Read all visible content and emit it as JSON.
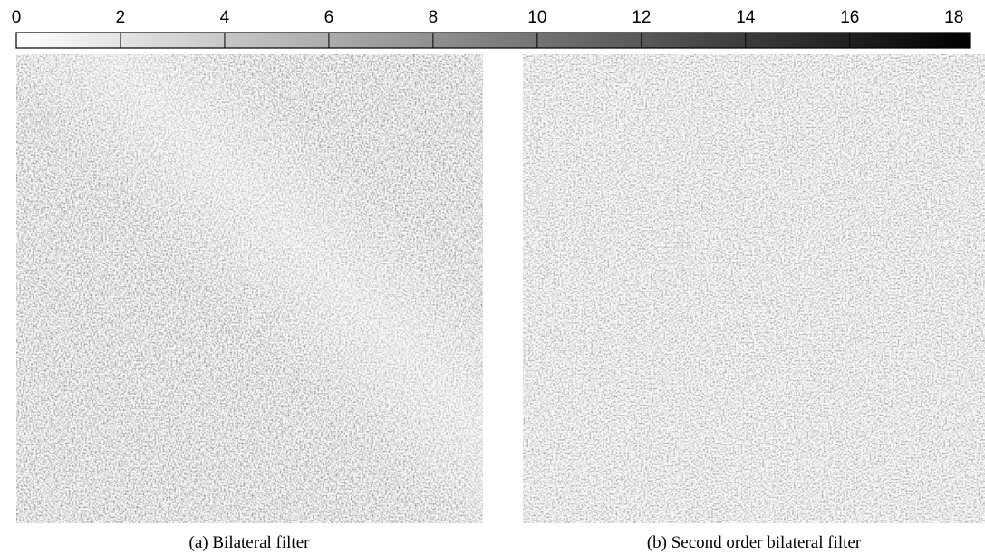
{
  "colorbar": {
    "xlim": [
      0,
      18.3
    ],
    "xticks": [
      0,
      2,
      4,
      6,
      8,
      10,
      12,
      14,
      16,
      18
    ],
    "colors": [
      "#ffffff",
      "#000000"
    ]
  },
  "panels": [
    {
      "caption": "(a) Bilateral filter"
    },
    {
      "caption": "(b) Second order bilateral filter"
    }
  ]
}
